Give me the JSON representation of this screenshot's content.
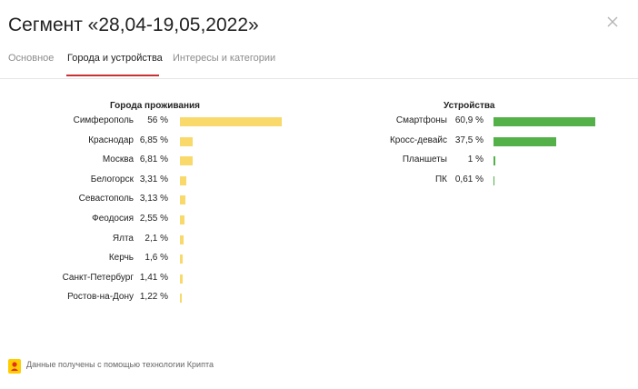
{
  "header": {
    "title": "Сегмент «28,04-19,05,2022»"
  },
  "tabs": [
    {
      "label": "Основное"
    },
    {
      "label": "Города и устройства"
    },
    {
      "label": "Интересы и категории"
    }
  ],
  "active_tab": "Города и устройства",
  "cities": {
    "title": "Города проживания",
    "bar_color": "#f9d96a",
    "items": [
      {
        "label": "Симферополь",
        "value": "56 %",
        "share": 56
      },
      {
        "label": "Краснодар",
        "value": "6,85 %",
        "share": 6.85
      },
      {
        "label": "Москва",
        "value": "6,81 %",
        "share": 6.81
      },
      {
        "label": "Белогорск",
        "value": "3,31 %",
        "share": 3.31
      },
      {
        "label": "Севастополь",
        "value": "3,13 %",
        "share": 3.13
      },
      {
        "label": "Феодосия",
        "value": "2,55 %",
        "share": 2.55
      },
      {
        "label": "Ялта",
        "value": "2,1 %",
        "share": 2.1
      },
      {
        "label": "Керчь",
        "value": "1,6 %",
        "share": 1.6
      },
      {
        "label": "Санкт-Петербург",
        "value": "1,41 %",
        "share": 1.41
      },
      {
        "label": "Ростов-на-Дону",
        "value": "1,22 %",
        "share": 1.22
      }
    ]
  },
  "devices": {
    "title": "Устройства",
    "bar_color": "#54b14a",
    "items": [
      {
        "label": "Смартфоны",
        "value": "60,9 %",
        "share": 60.9
      },
      {
        "label": "Кросс-девайс",
        "value": "37,5 %",
        "share": 37.5
      },
      {
        "label": "Планшеты",
        "value": "1 %",
        "share": 1
      },
      {
        "label": "ПК",
        "value": "0,61 %",
        "share": 0.61
      }
    ]
  },
  "footer": {
    "text": "Данные получены с помощью технологии Крипта",
    "icon": "crypta-logo-icon"
  },
  "icons": {
    "close": "close-icon"
  }
}
